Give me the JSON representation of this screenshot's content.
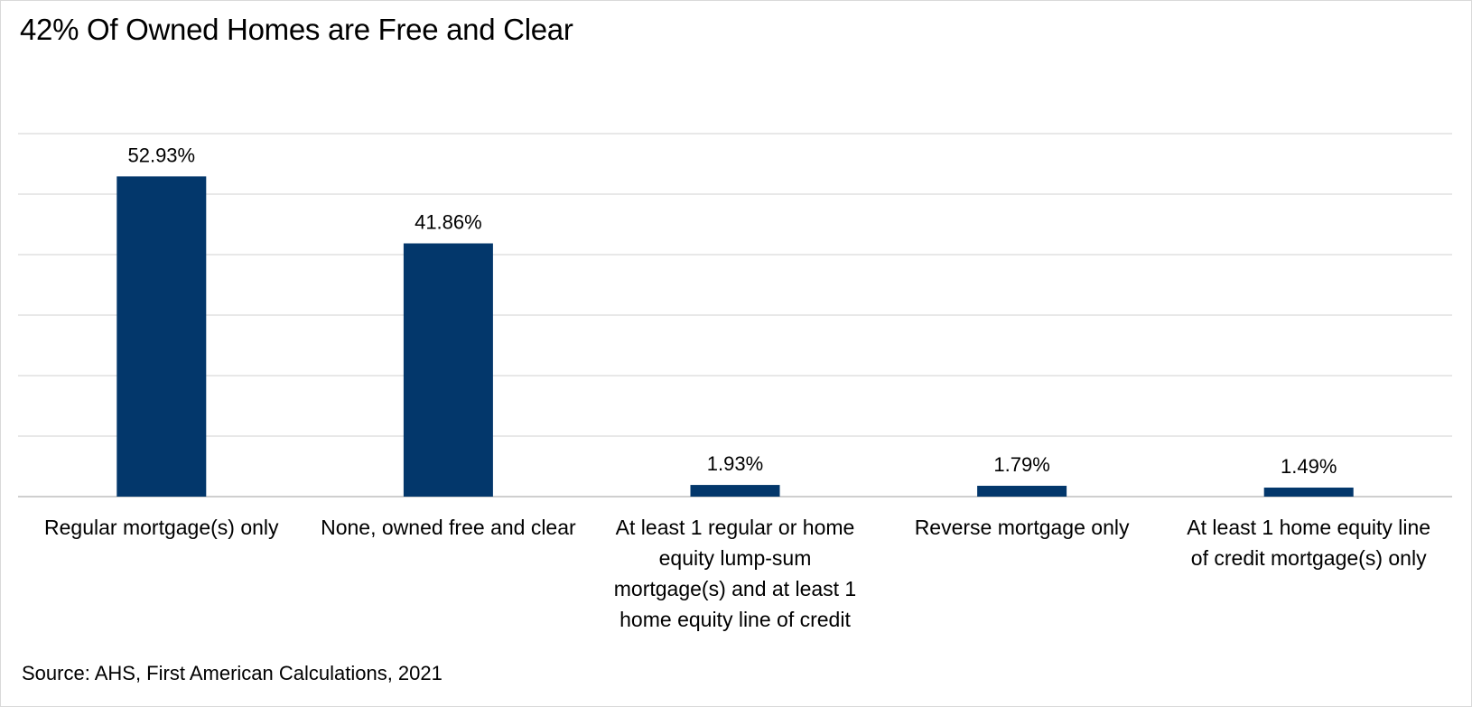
{
  "title": "42% Of Owned Homes are Free and Clear",
  "source": "Source: AHS, First American Calculations, 2021",
  "colors": {
    "bar": "#03376b",
    "gridline": "#d9d9d9",
    "axis": "#bfbfbf",
    "text": "#000000"
  },
  "chart_data": {
    "type": "bar",
    "title": "42% Of Owned Homes are Free and Clear",
    "xlabel": "",
    "ylabel": "",
    "ylim": [
      0,
      60
    ],
    "grid": true,
    "legend": "none",
    "categories": [
      "Regular mortgage(s) only",
      "None, owned free and clear",
      "At least 1 regular or home equity lump-sum mortgage(s) and at least 1 home equity line of credit",
      "Reverse mortgage only",
      "At least 1 home equity line of credit mortgage(s) only"
    ],
    "category_lines": [
      [
        "Regular mortgage(s) only"
      ],
      [
        "None, owned free and clear"
      ],
      [
        "At least 1 regular or home",
        "equity lump-sum",
        "mortgage(s) and at least 1",
        "home equity line of credit"
      ],
      [
        "Reverse mortgage only"
      ],
      [
        "At least 1 home equity line",
        "of credit mortgage(s) only"
      ]
    ],
    "values": [
      52.93,
      41.86,
      1.93,
      1.79,
      1.49
    ],
    "data_labels": [
      "52.93%",
      "41.86%",
      "1.93%",
      "1.79%",
      "1.49%"
    ]
  }
}
